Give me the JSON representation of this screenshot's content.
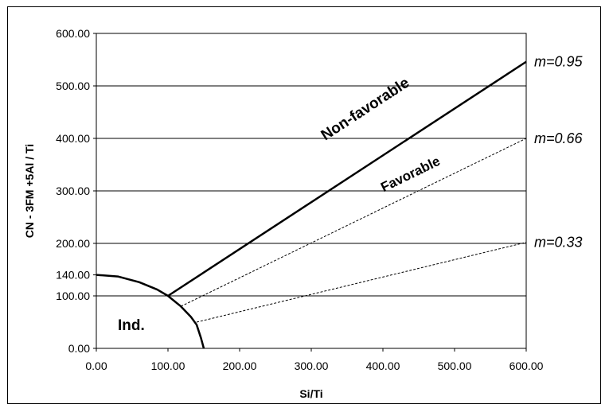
{
  "chart_data": {
    "type": "line",
    "title": "",
    "xlabel": "Si/Ti",
    "ylabel": "CN - 3FM +5Al / Ti",
    "xlim": [
      0,
      600
    ],
    "ylim": [
      0,
      600
    ],
    "x_ticks": [
      "0.00",
      "100.00",
      "200.00",
      "300.00",
      "400.00",
      "500.00",
      "600.00"
    ],
    "y_ticks": [
      "0.00",
      "100.00",
      "140.00",
      "200.00",
      "300.00",
      "400.00",
      "500.00",
      "600.00"
    ],
    "grid": "horizontal",
    "series": [
      {
        "name": "m=0.95",
        "style": "solid",
        "x": [
          100,
          600
        ],
        "y": [
          100,
          546
        ]
      },
      {
        "name": "m=0.66",
        "style": "dashed",
        "x": [
          118,
          600
        ],
        "y": [
          80,
          400
        ]
      },
      {
        "name": "m=0.33",
        "style": "dashed",
        "x": [
          140,
          600
        ],
        "y": [
          50,
          202
        ]
      },
      {
        "name": "",
        "style": "solid",
        "x": [
          0,
          30,
          60,
          85,
          100,
          118,
          132,
          140,
          146,
          150
        ],
        "y": [
          140,
          137,
          126,
          112,
          100,
          80,
          60,
          45,
          20,
          0
        ]
      }
    ],
    "annotations": {
      "non_favorable": "Non-favorable",
      "favorable": "Favorable",
      "indeterminate": "Ind."
    }
  }
}
